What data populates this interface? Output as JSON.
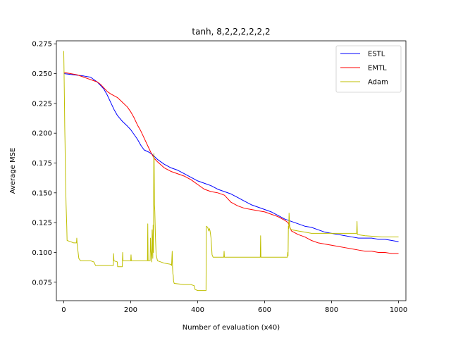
{
  "chart_data": {
    "type": "line",
    "title": "tanh, 8,2,2,2,2,2,2",
    "xlabel": "Number of evaluation (x40)",
    "ylabel": "Average MSE",
    "xlim": [
      -22,
      1022
    ],
    "ylim": [
      0.0595,
      0.2775
    ],
    "xticks": [
      0,
      200,
      400,
      600,
      800,
      1000
    ],
    "xtick_labels": [
      "0",
      "200",
      "400",
      "600",
      "800",
      "1000"
    ],
    "yticks": [
      0.075,
      0.1,
      0.125,
      0.15,
      0.175,
      0.2,
      0.225,
      0.25,
      0.275
    ],
    "ytick_labels": [
      "0.075",
      "0.100",
      "0.125",
      "0.150",
      "0.175",
      "0.200",
      "0.225",
      "0.250",
      "0.275"
    ],
    "grid": false,
    "legend_position": "top-right",
    "series": [
      {
        "name": "ESTL",
        "color": "#0000ff",
        "points": [
          [
            0,
            0.25
          ],
          [
            30,
            0.249
          ],
          [
            60,
            0.248
          ],
          [
            80,
            0.247
          ],
          [
            90,
            0.245
          ],
          [
            100,
            0.243
          ],
          [
            110,
            0.24
          ],
          [
            120,
            0.237
          ],
          [
            130,
            0.232
          ],
          [
            140,
            0.226
          ],
          [
            150,
            0.22
          ],
          [
            160,
            0.215
          ],
          [
            175,
            0.21
          ],
          [
            190,
            0.206
          ],
          [
            200,
            0.203
          ],
          [
            210,
            0.199
          ],
          [
            220,
            0.195
          ],
          [
            230,
            0.19
          ],
          [
            240,
            0.186
          ],
          [
            255,
            0.184
          ],
          [
            265,
            0.182
          ],
          [
            280,
            0.178
          ],
          [
            300,
            0.174
          ],
          [
            320,
            0.171
          ],
          [
            340,
            0.169
          ],
          [
            360,
            0.166
          ],
          [
            380,
            0.163
          ],
          [
            400,
            0.16
          ],
          [
            420,
            0.158
          ],
          [
            440,
            0.156
          ],
          [
            460,
            0.153
          ],
          [
            480,
            0.151
          ],
          [
            500,
            0.149
          ],
          [
            520,
            0.146
          ],
          [
            540,
            0.143
          ],
          [
            560,
            0.14
          ],
          [
            580,
            0.138
          ],
          [
            600,
            0.136
          ],
          [
            620,
            0.134
          ],
          [
            640,
            0.131
          ],
          [
            660,
            0.128
          ],
          [
            680,
            0.126
          ],
          [
            700,
            0.124
          ],
          [
            720,
            0.122
          ],
          [
            740,
            0.121
          ],
          [
            760,
            0.119
          ],
          [
            780,
            0.117
          ],
          [
            800,
            0.116
          ],
          [
            820,
            0.115
          ],
          [
            840,
            0.114
          ],
          [
            860,
            0.113
          ],
          [
            880,
            0.112
          ],
          [
            900,
            0.112
          ],
          [
            920,
            0.112
          ],
          [
            940,
            0.111
          ],
          [
            960,
            0.111
          ],
          [
            980,
            0.11
          ],
          [
            1000,
            0.109
          ]
        ]
      },
      {
        "name": "EMTL",
        "color": "#ff0000",
        "points": [
          [
            0,
            0.251
          ],
          [
            20,
            0.25
          ],
          [
            40,
            0.249
          ],
          [
            60,
            0.247
          ],
          [
            80,
            0.245
          ],
          [
            100,
            0.243
          ],
          [
            110,
            0.241
          ],
          [
            120,
            0.238
          ],
          [
            130,
            0.235
          ],
          [
            140,
            0.233
          ],
          [
            160,
            0.23
          ],
          [
            175,
            0.226
          ],
          [
            190,
            0.222
          ],
          [
            200,
            0.218
          ],
          [
            210,
            0.213
          ],
          [
            220,
            0.207
          ],
          [
            230,
            0.202
          ],
          [
            240,
            0.196
          ],
          [
            250,
            0.19
          ],
          [
            260,
            0.184
          ],
          [
            270,
            0.179
          ],
          [
            280,
            0.176
          ],
          [
            300,
            0.171
          ],
          [
            320,
            0.168
          ],
          [
            340,
            0.166
          ],
          [
            360,
            0.164
          ],
          [
            380,
            0.161
          ],
          [
            400,
            0.157
          ],
          [
            420,
            0.153
          ],
          [
            440,
            0.151
          ],
          [
            460,
            0.15
          ],
          [
            480,
            0.148
          ],
          [
            490,
            0.145
          ],
          [
            500,
            0.142
          ],
          [
            520,
            0.139
          ],
          [
            540,
            0.137
          ],
          [
            560,
            0.136
          ],
          [
            580,
            0.135
          ],
          [
            600,
            0.134
          ],
          [
            620,
            0.132
          ],
          [
            640,
            0.13
          ],
          [
            660,
            0.127
          ],
          [
            670,
            0.125
          ],
          [
            680,
            0.118
          ],
          [
            700,
            0.115
          ],
          [
            720,
            0.113
          ],
          [
            740,
            0.11
          ],
          [
            760,
            0.108
          ],
          [
            780,
            0.107
          ],
          [
            800,
            0.106
          ],
          [
            820,
            0.105
          ],
          [
            840,
            0.104
          ],
          [
            860,
            0.103
          ],
          [
            880,
            0.102
          ],
          [
            900,
            0.101
          ],
          [
            920,
            0.101
          ],
          [
            940,
            0.1
          ],
          [
            960,
            0.1
          ],
          [
            980,
            0.099
          ],
          [
            1000,
            0.099
          ]
        ]
      },
      {
        "name": "Adam",
        "color": "#bfbf00",
        "points": [
          [
            0,
            0.269
          ],
          [
            1,
            0.25
          ],
          [
            2,
            0.23
          ],
          [
            3,
            0.205
          ],
          [
            4,
            0.19
          ],
          [
            5,
            0.165
          ],
          [
            7,
            0.14
          ],
          [
            9,
            0.122
          ],
          [
            10,
            0.11
          ],
          [
            20,
            0.109
          ],
          [
            30,
            0.108
          ],
          [
            38,
            0.108
          ],
          [
            39,
            0.112
          ],
          [
            40,
            0.107
          ],
          [
            45,
            0.095
          ],
          [
            50,
            0.093
          ],
          [
            60,
            0.093
          ],
          [
            80,
            0.093
          ],
          [
            90,
            0.092
          ],
          [
            95,
            0.089
          ],
          [
            100,
            0.089
          ],
          [
            140,
            0.089
          ],
          [
            148,
            0.089
          ],
          [
            149,
            0.099
          ],
          [
            150,
            0.093
          ],
          [
            160,
            0.092
          ],
          [
            161,
            0.088
          ],
          [
            175,
            0.088
          ],
          [
            176,
            0.1
          ],
          [
            177,
            0.093
          ],
          [
            200,
            0.093
          ],
          [
            201,
            0.098
          ],
          [
            202,
            0.093
          ],
          [
            250,
            0.093
          ],
          [
            251,
            0.124
          ],
          [
            252,
            0.093
          ],
          [
            258,
            0.093
          ],
          [
            259,
            0.112
          ],
          [
            260,
            0.103
          ],
          [
            263,
            0.092
          ],
          [
            264,
            0.119
          ],
          [
            265,
            0.108
          ],
          [
            266,
            0.095
          ],
          [
            267,
            0.123
          ],
          [
            268,
            0.1
          ],
          [
            269,
            0.183
          ],
          [
            270,
            0.178
          ],
          [
            271,
            0.14
          ],
          [
            272,
            0.135
          ],
          [
            274,
            0.112
          ],
          [
            276,
            0.098
          ],
          [
            280,
            0.093
          ],
          [
            300,
            0.091
          ],
          [
            320,
            0.09
          ],
          [
            322,
            0.089
          ],
          [
            324,
            0.101
          ],
          [
            325,
            0.087
          ],
          [
            326,
            0.082
          ],
          [
            327,
            0.081
          ],
          [
            328,
            0.076
          ],
          [
            330,
            0.074
          ],
          [
            360,
            0.073
          ],
          [
            380,
            0.073
          ],
          [
            390,
            0.072
          ],
          [
            392,
            0.069
          ],
          [
            400,
            0.068
          ],
          [
            425,
            0.068
          ],
          [
            426,
            0.122
          ],
          [
            430,
            0.121
          ],
          [
            433,
            0.118
          ],
          [
            435,
            0.12
          ],
          [
            437,
            0.118
          ],
          [
            440,
            0.112
          ],
          [
            443,
            0.098
          ],
          [
            446,
            0.096
          ],
          [
            478,
            0.096
          ],
          [
            479,
            0.101
          ],
          [
            480,
            0.096
          ],
          [
            587,
            0.096
          ],
          [
            588,
            0.114
          ],
          [
            589,
            0.096
          ],
          [
            668,
            0.096
          ],
          [
            669,
            0.1
          ],
          [
            670,
            0.097
          ],
          [
            671,
            0.122
          ],
          [
            672,
            0.12
          ],
          [
            673,
            0.133
          ],
          [
            674,
            0.127
          ],
          [
            675,
            0.121
          ],
          [
            680,
            0.119
          ],
          [
            700,
            0.118
          ],
          [
            720,
            0.117
          ],
          [
            740,
            0.116
          ],
          [
            760,
            0.116
          ],
          [
            780,
            0.116
          ],
          [
            800,
            0.116
          ],
          [
            820,
            0.116
          ],
          [
            840,
            0.116
          ],
          [
            860,
            0.116
          ],
          [
            875,
            0.116
          ],
          [
            876,
            0.126
          ],
          [
            877,
            0.115
          ],
          [
            900,
            0.114
          ],
          [
            950,
            0.113
          ],
          [
            1000,
            0.113
          ]
        ]
      }
    ]
  }
}
